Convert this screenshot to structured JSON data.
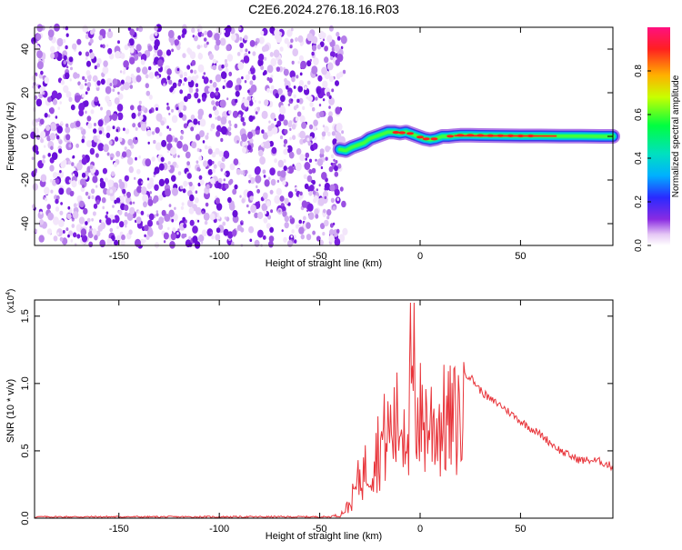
{
  "title": "C2E6.2024.276.18.16.R03",
  "chart_data": [
    {
      "type": "heatmap",
      "xlabel": "Height of straight line (km)",
      "ylabel": "Frequency (Hz)",
      "xlim": [
        -192,
        96
      ],
      "ylim": [
        -50,
        50
      ],
      "xticks": [
        -150,
        -100,
        -50,
        0,
        50
      ],
      "yticks": [
        -40,
        -20,
        0,
        20,
        40
      ],
      "noise_region_x": [
        -192,
        -40
      ],
      "signal_trace": {
        "x": [
          -40,
          -37,
          -34,
          -31,
          -28,
          -25,
          -22,
          -19,
          -16,
          -13,
          -10,
          -7,
          -4,
          -1,
          2,
          5,
          8,
          11,
          14,
          17,
          20,
          25,
          30,
          40,
          50,
          60,
          70,
          80,
          90,
          96
        ],
        "freq": [
          -6,
          -6.5,
          -5,
          -4,
          -3,
          -1,
          0,
          1,
          2,
          2,
          1.5,
          2,
          1,
          0,
          -1,
          -1.5,
          -1,
          0,
          0,
          0.3,
          0.5,
          0.5,
          0.4,
          0.3,
          0.2,
          0.2,
          0.1,
          0.1,
          0,
          0
        ]
      },
      "colorbar": {
        "label": "Normalized spectral amplitude",
        "range": [
          0,
          1
        ],
        "ticks": [
          0.0,
          0.2,
          0.4,
          0.6,
          0.8
        ]
      }
    },
    {
      "type": "line",
      "xlabel": "Height of straight line (km)",
      "ylabel": "SNR (10 * v/v)",
      "y_multiplier_label": "(x10",
      "y_multiplier_exp": "4",
      "xlim": [
        -192,
        96
      ],
      "ylim": [
        0,
        1.62
      ],
      "xticks": [
        -150,
        -100,
        -50,
        0,
        50
      ],
      "yticks": [
        0.0,
        0.5,
        1.0,
        1.5
      ],
      "color": "#e8343a",
      "envelope": {
        "x": [
          -192,
          -45,
          -40,
          -35,
          -30,
          -25,
          -20,
          -15,
          -10,
          -5,
          -3,
          0,
          5,
          10,
          15,
          20,
          25,
          30,
          35,
          40,
          45,
          50,
          55,
          60,
          65,
          70,
          75,
          80,
          85,
          90,
          96
        ],
        "y": [
          0.01,
          0.01,
          0.03,
          0.15,
          0.45,
          0.6,
          0.8,
          0.95,
          1.05,
          1.1,
          1.2,
          1.1,
          1.05,
          1.05,
          1.05,
          1.1,
          1.05,
          0.95,
          0.88,
          0.84,
          0.78,
          0.72,
          0.67,
          0.62,
          0.56,
          0.5,
          0.46,
          0.43,
          0.43,
          0.42,
          0.38
        ]
      }
    }
  ]
}
